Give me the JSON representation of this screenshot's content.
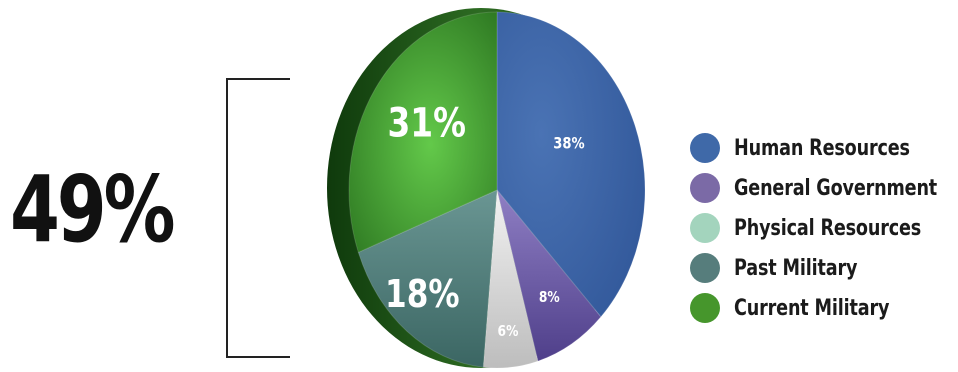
{
  "total_label": "49%",
  "chart_data": {
    "type": "pie",
    "title": "",
    "slices": [
      {
        "name": "Human Resources",
        "value": 38,
        "label": "38%",
        "color": "#3a62a6"
      },
      {
        "name": "General Government",
        "value": 8,
        "label": "8%",
        "color": "#6d5c9f"
      },
      {
        "name": "Physical Resources",
        "value": 6,
        "label": "6%",
        "color": "#d7dcd9"
      },
      {
        "name": "Past Military",
        "value": 18,
        "label": "18%",
        "color": "#4f7c79"
      },
      {
        "name": "Current Military",
        "value": 31,
        "label": "31%",
        "color": "#3d9a2f"
      }
    ],
    "legend": [
      {
        "label": "Human Resources",
        "color": "#3f69a8"
      },
      {
        "label": "General Government",
        "color": "#7b6aa6"
      },
      {
        "label": "Physical Resources",
        "color": "#a3d4bd"
      },
      {
        "label": "Past Military",
        "color": "#567d7c"
      },
      {
        "label": "Current Military",
        "color": "#46962c"
      }
    ],
    "legend_position": "right",
    "bracket_spans": [
      "Past Military",
      "Current Military"
    ]
  }
}
